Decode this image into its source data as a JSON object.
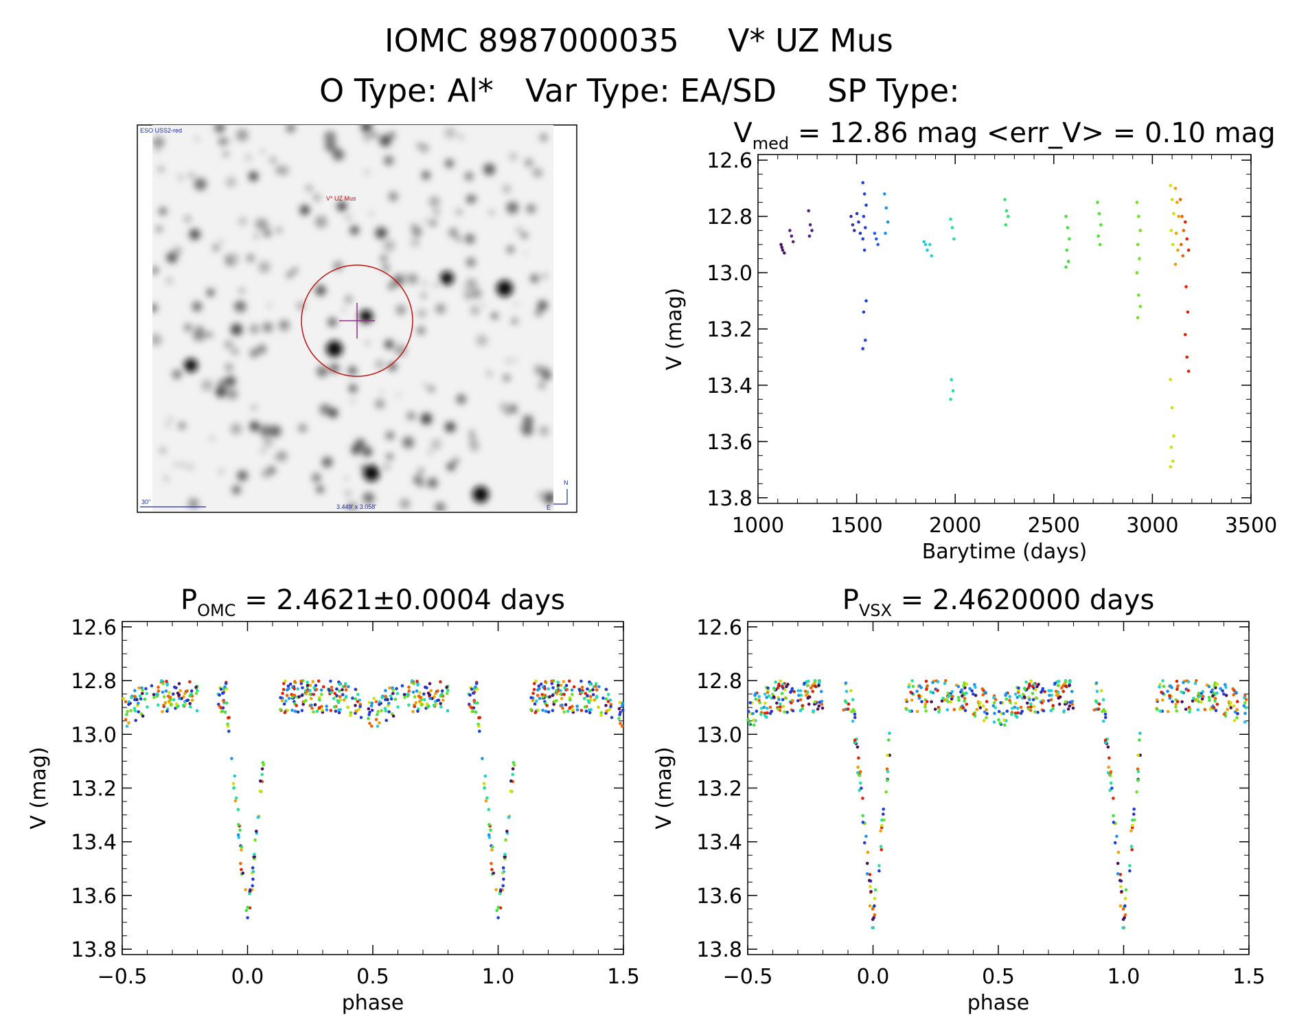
{
  "header": {
    "title_left": "IOMC 8987000035",
    "title_right": "V* UZ Mus",
    "o_type": "O Type: Al*",
    "var_type": "Var Type: EA/SD",
    "sp_type": "SP Type:"
  },
  "finder": {
    "survey": "ESO USS2-red",
    "target": "V* UZ Mus",
    "scale": "30\"",
    "fov": "3.449' x 3.058'",
    "north": "N",
    "east": "E"
  },
  "colors": {
    "axis": "#000000",
    "circle": "#c01010",
    "cross": "#9a2a8a",
    "finder_text": "#1a2aa0"
  },
  "chart_data": [
    {
      "id": "lightcurve",
      "type": "scatter",
      "title_main": "V",
      "title_sub": "med",
      "title_rest": " = 12.86 mag <err_V> = 0.10 mag",
      "xlabel": "Barytime (days)",
      "ylabel": "V (mag)",
      "xlim": [
        1000,
        3500
      ],
      "ylim": [
        13.82,
        12.58
      ],
      "xticks": [
        1000,
        1500,
        2000,
        2500,
        3000,
        3500
      ],
      "yticks": [
        12.6,
        12.8,
        13.0,
        13.2,
        13.4,
        13.6,
        13.8
      ],
      "tick_labels_x": [
        "1000",
        "1500",
        "2000",
        "2500",
        "3000",
        "3500"
      ],
      "tick_labels_y": [
        "12.6",
        "12.8",
        "13.0",
        "13.2",
        "13.4",
        "13.6",
        "13.8"
      ],
      "groups": [
        {
          "t": 1125,
          "color": "#4a1060",
          "v": [
            12.9,
            12.92,
            12.93,
            12.91
          ]
        },
        {
          "t": 1170,
          "color": "#5a1a80",
          "v": [
            12.85,
            12.87,
            12.89
          ]
        },
        {
          "t": 1265,
          "color": "#5a1a80",
          "v": [
            12.78,
            12.83,
            12.85,
            12.87
          ]
        },
        {
          "t": 1480,
          "color": "#3a2aa0",
          "v": [
            12.8,
            12.83,
            12.85
          ]
        },
        {
          "t": 1510,
          "color": "#2a30c0",
          "v": [
            12.79,
            12.82,
            12.86
          ]
        },
        {
          "t": 1540,
          "color": "#1a40e0",
          "v": [
            12.68,
            12.72,
            12.76,
            12.8,
            12.84,
            12.88,
            12.92,
            13.1,
            13.14,
            13.24,
            13.27
          ]
        },
        {
          "t": 1600,
          "color": "#1a60e0",
          "v": [
            12.86,
            12.88,
            12.9
          ]
        },
        {
          "t": 1650,
          "color": "#1a90f0",
          "v": [
            12.72,
            12.77,
            12.82,
            12.86
          ]
        },
        {
          "t": 1850,
          "color": "#20c8e0",
          "v": [
            12.89,
            12.9,
            12.92
          ]
        },
        {
          "t": 1880,
          "color": "#20d8c0",
          "v": [
            12.9,
            12.94
          ]
        },
        {
          "t": 1985,
          "color": "#20e0a0",
          "v": [
            12.81,
            12.84,
            12.88,
            13.38,
            13.42,
            13.45
          ]
        },
        {
          "t": 2260,
          "color": "#30e070",
          "v": [
            12.74,
            12.78,
            12.8,
            12.83
          ]
        },
        {
          "t": 2570,
          "color": "#40e040",
          "v": [
            12.8,
            12.84,
            12.88,
            12.92,
            12.96,
            12.98
          ]
        },
        {
          "t": 2730,
          "color": "#50e030",
          "v": [
            12.75,
            12.79,
            12.83,
            12.87,
            12.9
          ]
        },
        {
          "t": 2930,
          "color": "#70e020",
          "v": [
            12.75,
            12.8,
            12.85,
            12.9,
            12.95,
            13.0,
            13.08,
            13.12,
            13.16
          ]
        },
        {
          "t": 3100,
          "color": "#d0e000",
          "v": [
            12.69,
            12.74,
            12.79,
            12.85,
            12.9,
            13.38,
            13.48,
            13.58,
            13.62,
            13.67,
            13.69
          ]
        },
        {
          "t": 3125,
          "color": "#f0a000",
          "v": [
            12.7,
            12.75,
            12.8,
            12.86,
            12.92,
            12.97
          ]
        },
        {
          "t": 3150,
          "color": "#f06000",
          "v": [
            12.74,
            12.8,
            12.85,
            12.9,
            12.94
          ]
        },
        {
          "t": 3175,
          "color": "#e02000",
          "v": [
            12.82,
            12.88,
            12.92,
            13.05,
            13.14,
            13.22,
            13.3,
            13.35
          ]
        }
      ]
    },
    {
      "id": "phase_omc",
      "type": "scatter",
      "title_main": "P",
      "title_sub": "OMC",
      "title_rest": " = 2.4621±0.0004 days",
      "xlabel": "phase",
      "ylabel": "V (mag)",
      "xlim": [
        -0.5,
        1.5
      ],
      "ylim": [
        13.82,
        12.58
      ],
      "xticks": [
        -0.5,
        0.0,
        0.5,
        1.0,
        1.5
      ],
      "yticks": [
        12.6,
        12.8,
        13.0,
        13.2,
        13.4,
        13.6,
        13.8
      ],
      "tick_labels_x": [
        "−0.5",
        "0.0",
        "0.5",
        "1.0",
        "1.5"
      ],
      "tick_labels_y": [
        "12.6",
        "12.8",
        "13.0",
        "13.2",
        "13.4",
        "13.6",
        "13.8"
      ]
    },
    {
      "id": "phase_vsx",
      "type": "scatter",
      "title_main": "P",
      "title_sub": "VSX",
      "title_rest": " = 2.4620000 days",
      "xlabel": "phase",
      "ylabel": "V (mag)",
      "xlim": [
        -0.5,
        1.5
      ],
      "ylim": [
        13.82,
        12.58
      ],
      "xticks": [
        -0.5,
        0.0,
        0.5,
        1.0,
        1.5
      ],
      "yticks": [
        12.6,
        12.8,
        13.0,
        13.2,
        13.4,
        13.6,
        13.8
      ],
      "tick_labels_x": [
        "−0.5",
        "0.0",
        "0.5",
        "1.0",
        "1.5"
      ],
      "tick_labels_y": [
        "12.6",
        "12.8",
        "13.0",
        "13.2",
        "13.4",
        "13.6",
        "13.8"
      ]
    }
  ],
  "phase_model": {
    "base_mag": 12.86,
    "primary_depth": 0.84,
    "primary_halfwidth": 0.085,
    "secondary_depth": 0.06,
    "secondary_halfwidth": 0.12,
    "gaps": [
      [
        0.07,
        0.13
      ],
      [
        -0.2,
        -0.12
      ],
      [
        0.46,
        0.48
      ]
    ],
    "palette": [
      "#4a1060",
      "#2a30c0",
      "#1a40e0",
      "#1a90f0",
      "#20c8e0",
      "#20e0a0",
      "#40e040",
      "#70e020",
      "#d0e000",
      "#f0a000",
      "#f06000",
      "#e02000"
    ]
  }
}
